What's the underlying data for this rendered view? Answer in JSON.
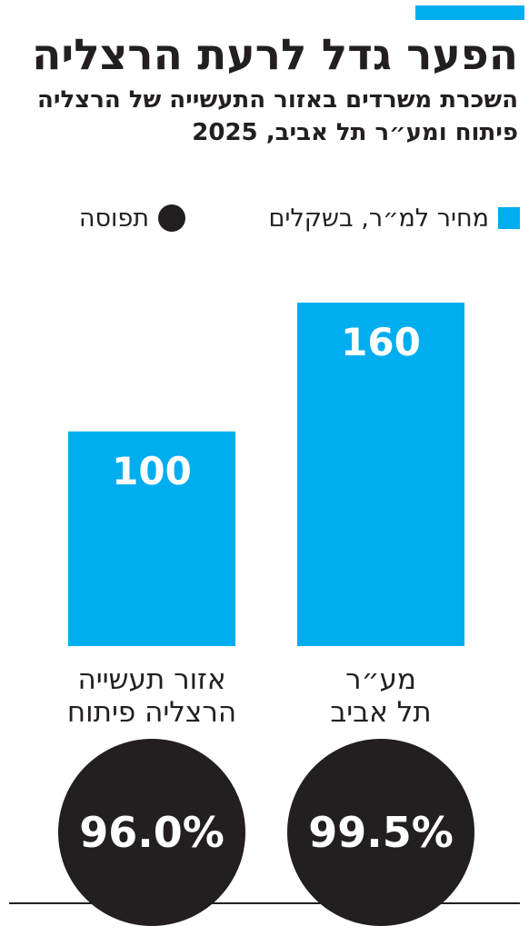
{
  "title": "הפער גדל לרעת הרצליה",
  "subtitle": "השכרת משרדים באזור התעשייה של הרצליה פיתוח ומע״ר תל אביב, 2025",
  "legend": {
    "price": "מחיר למ״ר, בשקלים",
    "occupancy": "תפוסה"
  },
  "colors": {
    "accent": "#00aeef",
    "dark": "#231f20"
  },
  "chart_data": {
    "type": "bar",
    "title": "הפער גדל לרעת הרצליה",
    "subtitle": "השכרת משרדים באזור התעשייה של הרצליה פיתוח ומע״ר תל אביב, 2025",
    "categories": [
      [
        "אזור תעשייה",
        "הרצליה פיתוח"
      ],
      [
        "מע״ר",
        "תל אביב"
      ]
    ],
    "series": [
      {
        "name": "מחיר למ״ר, בשקלים",
        "values": [
          100,
          160
        ],
        "labels": [
          "100",
          "160"
        ],
        "color": "#00aeef"
      },
      {
        "name": "תפוסה",
        "values": [
          96.0,
          99.5
        ],
        "labels": [
          "96.0%",
          "99.5%"
        ],
        "unit": "%",
        "color": "#231f20"
      }
    ],
    "ylim": [
      0,
      160
    ],
    "grid": false,
    "legend": "top"
  }
}
